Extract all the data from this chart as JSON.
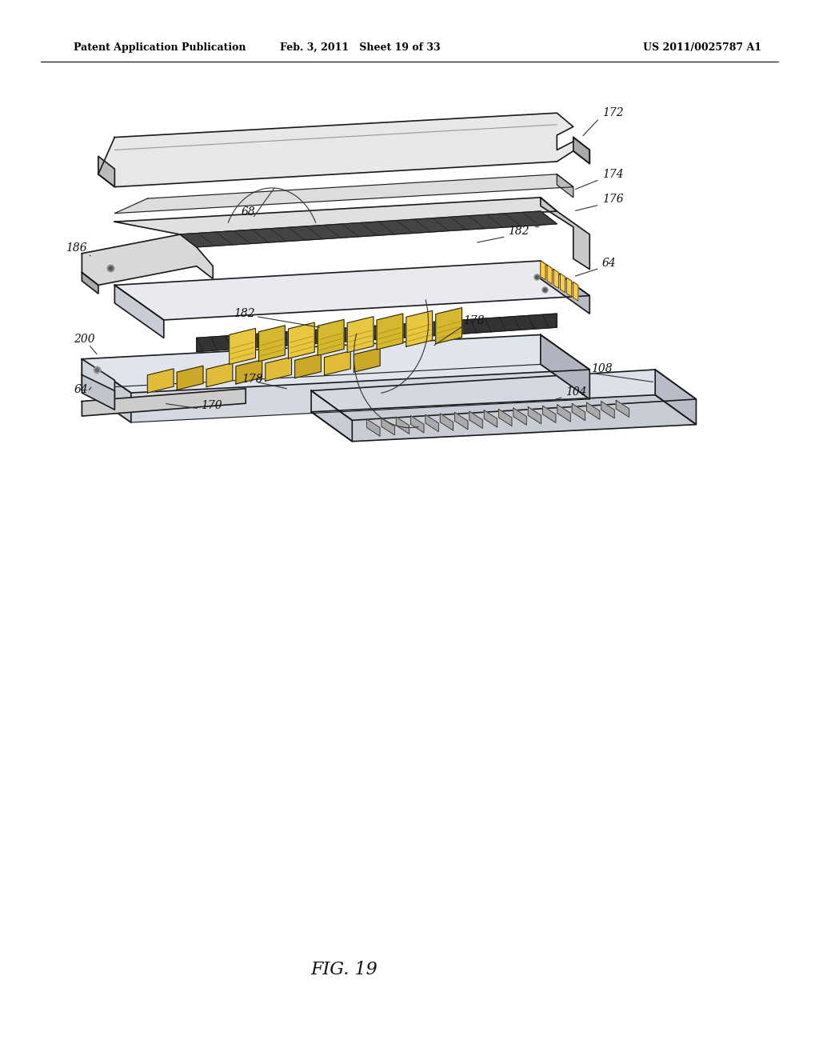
{
  "background_color": "#ffffff",
  "header_left": "Patent Application Publication",
  "header_mid": "Feb. 3, 2011   Sheet 19 of 33",
  "header_right": "US 2011/0025787 A1",
  "fig_label": "FIG. 19"
}
